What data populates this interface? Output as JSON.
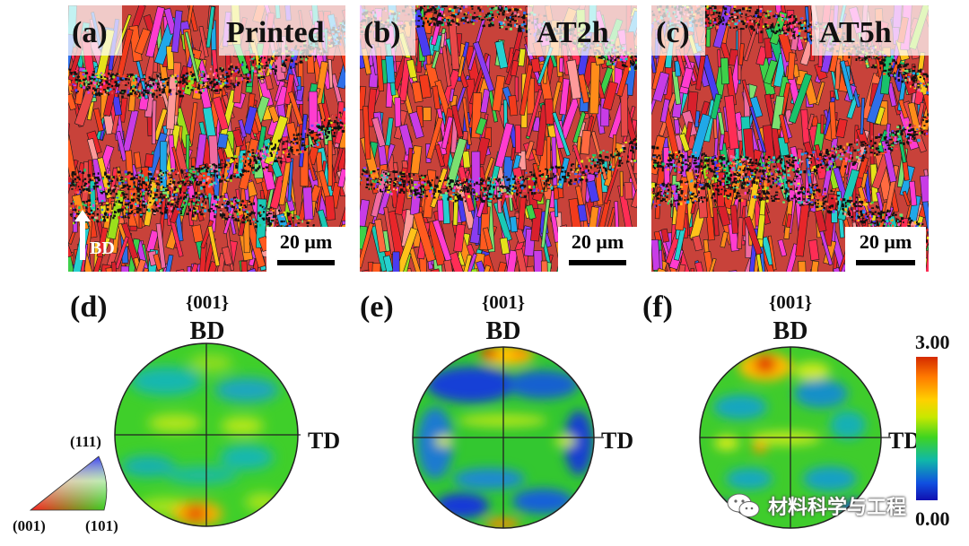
{
  "figure": {
    "maps": [
      {
        "label": "(a)",
        "title": "Printed",
        "scale_bar": "20 μm"
      },
      {
        "label": "(b)",
        "title": "AT2h",
        "scale_bar": "20 μm"
      },
      {
        "label": "(c)",
        "title": "AT5h",
        "scale_bar": "20 μm"
      }
    ],
    "build_direction": "BD",
    "pole_figures": [
      {
        "label": "(d)",
        "plane": "{001}",
        "top_axis": "BD",
        "right_axis": "TD"
      },
      {
        "label": "(e)",
        "plane": "{001}",
        "top_axis": "BD",
        "right_axis": "TD"
      },
      {
        "label": "(f)",
        "plane": "{001}",
        "top_axis": "BD",
        "right_axis": "TD"
      }
    ],
    "colorbar": {
      "max": "3.00",
      "min": "0.00"
    },
    "ipf_legend": {
      "top": "(111)",
      "left": "(001)",
      "right": "(101)"
    },
    "watermark": "材料科学与工程"
  }
}
